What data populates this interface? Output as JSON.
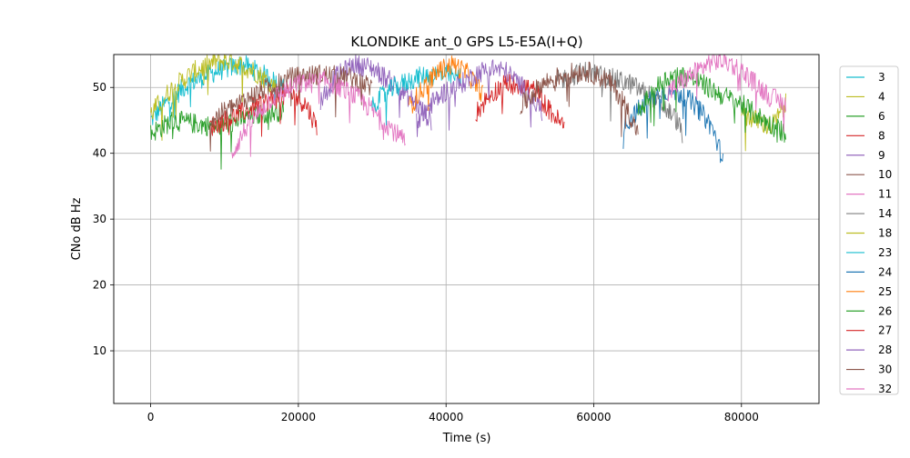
{
  "chart_data": {
    "type": "line",
    "title": "KLONDIKE ant_0 GPS L5-E5A(I+Q)",
    "xlabel": "Time (s)",
    "ylabel": "CNo dB Hz",
    "xlim": [
      -5000,
      90500
    ],
    "ylim": [
      2,
      55
    ],
    "xticks": [
      0,
      20000,
      40000,
      60000,
      80000
    ],
    "xtick_labels": [
      "0",
      "20000",
      "40000",
      "60000",
      "80000"
    ],
    "yticks": [
      10,
      20,
      30,
      40,
      50
    ],
    "ytick_labels": [
      "10",
      "20",
      "30",
      "40",
      "50"
    ],
    "grid": true,
    "legend_position": "outside-right",
    "series": [
      {
        "name": "3",
        "color": "#17becf",
        "x": [
          0,
          1500,
          5000,
          9000,
          12500,
          16000,
          18500
        ],
        "y": [
          45,
          47,
          50.5,
          52.5,
          53.5,
          51.5,
          49.5
        ]
      },
      {
        "name": "4",
        "color": "#bcbd22",
        "x": [
          0,
          3000,
          6000,
          9000,
          11000,
          14000,
          17000
        ],
        "y": [
          46,
          50,
          52.5,
          54,
          54,
          52.5,
          50
        ]
      },
      {
        "name": "6",
        "color": "#2ca02c",
        "x": [
          0,
          3000,
          6000,
          9000,
          12000,
          15000,
          18000
        ],
        "y": [
          43,
          45,
          44.5,
          44,
          45,
          46,
          46.5
        ]
      },
      {
        "name": "8",
        "color": "#d62728",
        "x": [
          8000,
          12000,
          16000,
          19000,
          21000,
          22500
        ],
        "y": [
          44,
          46,
          48,
          49,
          47.5,
          44
        ]
      },
      {
        "name": "9",
        "color": "#9467bd",
        "x": [
          23000,
          25000,
          27500,
          30000,
          33000,
          36000,
          38000
        ],
        "y": [
          48,
          51.5,
          53.5,
          53,
          50.5,
          47.5,
          45
        ]
      },
      {
        "name": "10",
        "color": "#8c564b",
        "x": [
          8000,
          11000,
          15000,
          19000,
          23000,
          27000,
          30000
        ],
        "y": [
          45,
          47,
          49.5,
          51.5,
          52,
          51.5,
          50
        ]
      },
      {
        "name": "11",
        "color": "#e377c2",
        "x": [
          11000,
          13000,
          16000,
          20000,
          24000,
          28000,
          32000,
          34500
        ],
        "y": [
          40,
          44,
          48,
          50.5,
          51,
          48.5,
          44.5,
          41.5
        ]
      },
      {
        "name": "14",
        "color": "#7f7f7f",
        "x": [
          55000,
          59000,
          62000,
          65000,
          68000,
          71000,
          72000
        ],
        "y": [
          51,
          52.5,
          51.5,
          50.5,
          48.5,
          45.5,
          43
        ]
      },
      {
        "name": "18",
        "color": "#bcbd22",
        "x": [
          80000,
          82000,
          84000,
          85000,
          86000
        ],
        "y": [
          46,
          45,
          44,
          45.5,
          47.5
        ]
      },
      {
        "name": "23",
        "color": "#17becf",
        "x": [
          30000,
          33000,
          36000,
          39000,
          42000
        ],
        "y": [
          47.5,
          50,
          51.5,
          52,
          51.5
        ]
      },
      {
        "name": "24",
        "color": "#1f77b4",
        "x": [
          64000,
          66000,
          68000,
          70000,
          72000,
          74000,
          76000,
          77500
        ],
        "y": [
          44,
          46.5,
          48.5,
          49.5,
          49,
          47,
          44,
          39
        ]
      },
      {
        "name": "25",
        "color": "#ff7f0e",
        "x": [
          35000,
          37000,
          39000,
          41000,
          43000,
          45000
        ],
        "y": [
          47,
          50,
          52.5,
          53.5,
          52,
          49
        ]
      },
      {
        "name": "26",
        "color": "#2ca02c",
        "x": [
          66000,
          68000,
          70000,
          72000,
          74000,
          77000,
          80000,
          83000,
          86000
        ],
        "y": [
          46,
          49.5,
          51.5,
          51.8,
          51,
          49,
          47.5,
          45,
          43
        ]
      },
      {
        "name": "27",
        "color": "#d62728",
        "x": [
          44000,
          46000,
          48000,
          50000,
          52000,
          54000,
          56000
        ],
        "y": [
          46,
          49,
          50.5,
          50.5,
          49.5,
          46.5,
          44
        ]
      },
      {
        "name": "28",
        "color": "#9467bd",
        "x": [
          36000,
          38000,
          40000,
          42000,
          44000,
          46000,
          48000,
          50000,
          53000
        ],
        "y": [
          45,
          47.5,
          49.5,
          50.5,
          52,
          53,
          52.5,
          50.5,
          46.5
        ]
      },
      {
        "name": "30",
        "color": "#8c564b",
        "x": [
          50000,
          53000,
          56000,
          59000,
          62000,
          64000,
          66000
        ],
        "y": [
          47,
          50.5,
          52,
          52.5,
          51,
          48,
          43
        ]
      },
      {
        "name": "32",
        "color": "#e377c2",
        "x": [
          70000,
          72000,
          74000,
          76000,
          78000,
          80000,
          82000,
          84000,
          86000
        ],
        "y": [
          49,
          51,
          52.5,
          54,
          54,
          52.5,
          50.5,
          48.5,
          47.5
        ]
      }
    ]
  }
}
